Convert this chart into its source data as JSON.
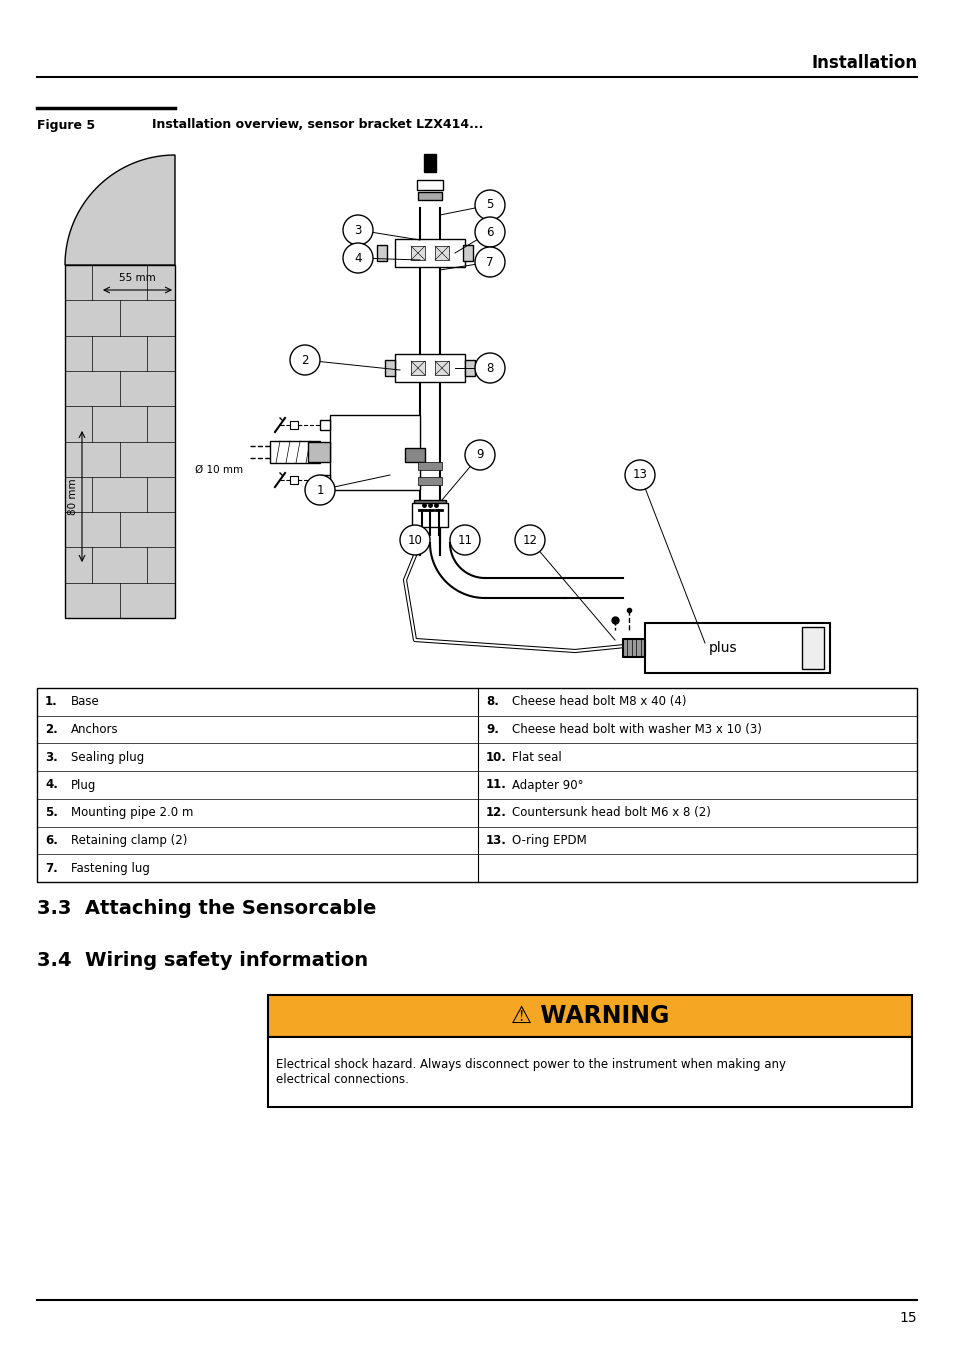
{
  "page_title": "Installation",
  "figure_label": "Figure 5",
  "figure_caption": "Installation overview, sensor bracket LZX414...",
  "section_33": "3.3  Attaching the Sensorcable",
  "section_34": "3.4  Wiring safety information",
  "warning_title": "WARNING",
  "warning_symbol": "⚠",
  "warning_text": "Electrical shock hazard. Always disconnect power to the instrument when making any\nelectrical connections.",
  "warning_bg": "#F5A623",
  "warning_border": "#000000",
  "table_rows_left": [
    [
      "1.",
      "Base"
    ],
    [
      "2.",
      "Anchors"
    ],
    [
      "3.",
      "Sealing plug"
    ],
    [
      "4.",
      "Plug"
    ],
    [
      "5.",
      "Mounting pipe 2.0 m"
    ],
    [
      "6.",
      "Retaining clamp (2)"
    ],
    [
      "7.",
      "Fastening lug"
    ]
  ],
  "table_rows_right": [
    [
      "8.",
      "Cheese head bolt M8 x 40 (4)"
    ],
    [
      "9.",
      "Cheese head bolt with washer M3 x 10 (3)"
    ],
    [
      "10.",
      "Flat seal"
    ],
    [
      "11.",
      "Adapter 90°"
    ],
    [
      "12.",
      "Countersunk head bolt M6 x 8 (2)"
    ],
    [
      "13.",
      "O-ring EPDM"
    ],
    [
      "",
      ""
    ]
  ],
  "page_number": "15",
  "bg_color": "#ffffff",
  "text_color": "#000000"
}
